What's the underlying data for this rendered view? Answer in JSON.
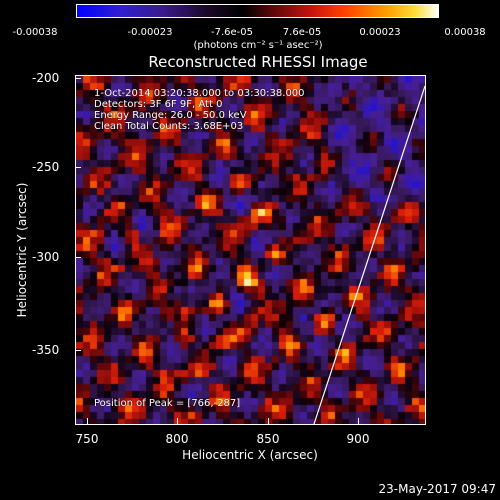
{
  "colorbar": {
    "ticks": [
      "-0.00038",
      "-0.00023",
      "-7.6e-05",
      "7.6e-05",
      "0.00023",
      "0.00038"
    ],
    "unit": "(photons cm⁻² s⁻¹ asec⁻²)"
  },
  "title": "Reconstructed RHESSI Image",
  "annotations": {
    "time": "1-Oct-2014 03:20:38.000 to 03:30:38.000",
    "detectors": "Detectors: 3F 6F 9F, Att 0",
    "energy": "Energy Range: 26.0 - 50.0 keV",
    "clean": "Clean      Total Counts: 3.68E+03",
    "peak": "Position of Peak = [766,-287]"
  },
  "axes": {
    "xlabel": "Heliocentric X (arcsec)",
    "ylabel": "Heliocentric Y (arcsec)",
    "xticks": [
      "750",
      "800",
      "850",
      "900"
    ],
    "yticks": [
      "-200",
      "-250",
      "-300",
      "-350"
    ]
  },
  "timestamp": "23-May-2017 09:47"
}
